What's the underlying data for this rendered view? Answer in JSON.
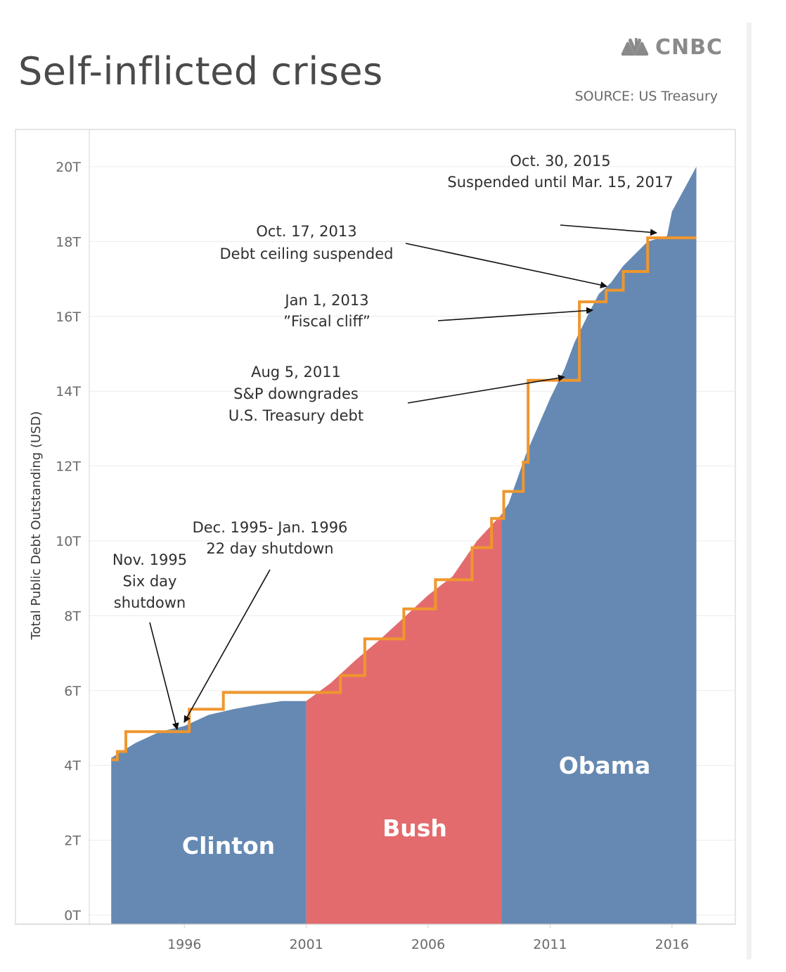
{
  "header": {
    "title": "Self-inflicted crises",
    "brand": "CNBC",
    "source": "SOURCE: US Treasury"
  },
  "colors": {
    "blue": "#6589b3",
    "red": "#e36b6e",
    "orange": "#f0962e",
    "arrow": "#111111"
  },
  "chart_data": {
    "type": "area",
    "ylabel": "Total Public Debt Outstanding  (USD)",
    "xlabel": "",
    "xlim": [
      1992.1,
      2018.6
    ],
    "ylim": [
      0,
      20
    ],
    "grid": true,
    "y_ticks": [
      0,
      2,
      4,
      6,
      8,
      10,
      12,
      14,
      16,
      18,
      20
    ],
    "y_tick_labels": [
      "0T",
      "2T",
      "4T",
      "6T",
      "8T",
      "10T",
      "12T",
      "14T",
      "16T",
      "18T",
      "20T"
    ],
    "x_ticks": [
      1996,
      2001,
      2006,
      2011,
      2016
    ],
    "x_tick_labels": [
      "1996",
      "2001",
      "2006",
      "2011",
      "2016"
    ],
    "series": [
      {
        "name": "Clinton",
        "x": [
          1993.0,
          1993.5,
          1994.0,
          1995.0,
          1996.0,
          1997.0,
          1998.0,
          1999.0,
          2000.0,
          2001.0
        ],
        "y": [
          4.2,
          4.4,
          4.6,
          4.9,
          5.05,
          5.35,
          5.5,
          5.62,
          5.72,
          5.72
        ]
      },
      {
        "name": "Bush",
        "x": [
          2001.0,
          2002.0,
          2003.0,
          2004.0,
          2005.0,
          2006.0,
          2007.0,
          2008.0,
          2009.0
        ],
        "y": [
          5.72,
          6.2,
          6.8,
          7.35,
          7.95,
          8.55,
          9.05,
          10.0,
          10.7
        ]
      },
      {
        "name": "Obama",
        "x": [
          2009.0,
          2009.3,
          2010.0,
          2011.0,
          2011.6,
          2012.0,
          2012.6,
          2013.0,
          2013.5,
          2014.0,
          2015.0,
          2015.8,
          2016.0,
          2017.0
        ],
        "y": [
          10.7,
          11.0,
          12.3,
          13.8,
          14.6,
          15.3,
          16.1,
          16.6,
          16.9,
          17.35,
          18.0,
          18.15,
          18.8,
          20.0
        ]
      }
    ],
    "debt_limit": {
      "x": [
        1993.0,
        1993.25,
        1993.6,
        1994.6,
        1996.2,
        1997.6,
        2002.4,
        2003.4,
        2005.0,
        2006.3,
        2007.8,
        2008.6,
        2009.1,
        2009.9,
        2010.1,
        2012.2,
        2013.3,
        2014.0,
        2015.0,
        2015.8,
        2017.0
      ],
      "y": [
        4.15,
        4.37,
        4.9,
        4.9,
        5.5,
        5.95,
        6.4,
        7.38,
        8.18,
        8.96,
        9.82,
        10.6,
        11.32,
        12.1,
        14.29,
        16.39,
        16.7,
        17.2,
        18.1,
        18.1,
        18.1
      ]
    },
    "region_labels": [
      "Clinton",
      "Bush",
      "Obama"
    ],
    "annotations": [
      {
        "lines": [
          "Nov. 1995",
          "Six day",
          "shutdown"
        ]
      },
      {
        "lines": [
          "Dec. 1995- Jan. 1996",
          "22 day shutdown"
        ]
      },
      {
        "lines": [
          "Aug 5, 2011",
          "S&P downgrades",
          "U.S. Treasury debt"
        ]
      },
      {
        "lines": [
          "Jan 1, 2013",
          "”Fiscal cliff”"
        ]
      },
      {
        "lines": [
          "Oct. 17, 2013",
          "Debt ceiling suspended"
        ]
      },
      {
        "lines": [
          "Oct. 30, 2015",
          "Suspended until Mar. 15, 2017"
        ]
      }
    ]
  }
}
